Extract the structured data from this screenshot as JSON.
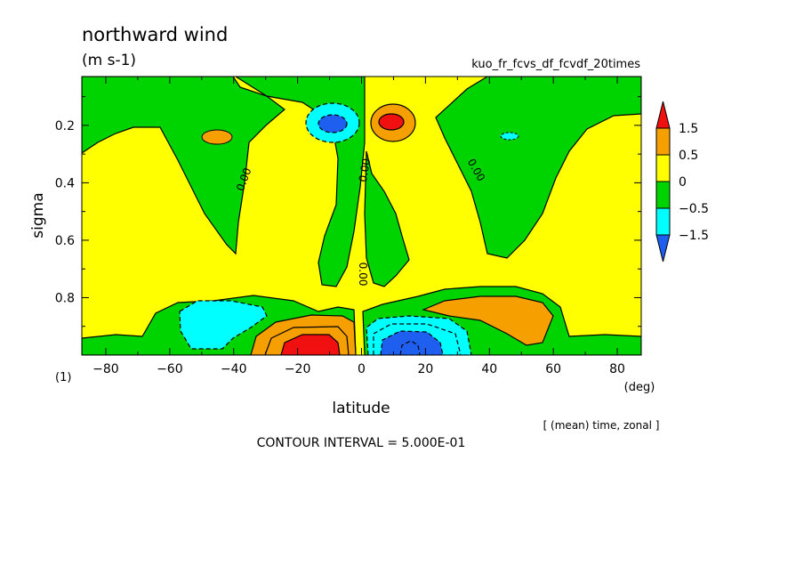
{
  "chart_data": {
    "type": "heatmap",
    "title": "northward wind",
    "units": "(m s-1)",
    "experiment": "kuo_fr_fcvs_df_fcvdf_20times",
    "xlabel": "latitude",
    "xunit": "(deg)",
    "ylabel": "sigma",
    "panel_number": "(1)",
    "averaging_note": "[ (mean) time, zonal ]",
    "contour_interval_text": "CONTOUR INTERVAL = 5.000E-01",
    "xlim": [
      -87.5,
      87.5
    ],
    "ylim": [
      1.0,
      0.03
    ],
    "x_ticks": [
      -80,
      -60,
      -40,
      -20,
      0,
      20,
      40,
      60,
      80
    ],
    "y_ticks": [
      0.2,
      0.4,
      0.6,
      0.8
    ],
    "contour_label": "0.00",
    "colorbar": {
      "boundaries": [
        -1.5,
        -0.5,
        0,
        0.5,
        1.5
      ],
      "tick_labels": [
        "1.5",
        "0.5",
        "0",
        "−0.5",
        "−1.5"
      ],
      "colors": [
        "#1f5ff0",
        "#00ffff",
        "#00d400",
        "#ffff00",
        "#f5a000",
        "#f01010"
      ]
    },
    "regions": [
      {
        "class": "<-1.5",
        "color": "#1f5ff0",
        "lat_range": [
          -13,
          -8
        ],
        "sigma_range": [
          0.16,
          0.2
        ],
        "note": "upper SH core"
      },
      {
        "class": "-1.5..-0.5",
        "color": "#00ffff",
        "lat_range": [
          -17,
          -4
        ],
        "sigma_range": [
          0.14,
          0.24
        ],
        "note": "upper tropospheric southerly"
      },
      {
        "class": ">1.5",
        "color": "#f01010",
        "lat_range": [
          6,
          12
        ],
        "sigma_range": [
          0.16,
          0.2
        ],
        "note": "upper NH core"
      },
      {
        "class": "0.5..1.5",
        "color": "#f5a000",
        "lat_range": [
          3,
          17
        ],
        "sigma_range": [
          0.13,
          0.25
        ],
        "note": "upper tropospheric northerly"
      },
      {
        "class": ">1.5",
        "color": "#f01010",
        "lat_range": [
          -22,
          -6
        ],
        "sigma_range": [
          0.93,
          1.0
        ],
        "note": "low-level SH core"
      },
      {
        "class": "0.5..1.5",
        "color": "#f5a000",
        "lat_range": [
          -33,
          -3
        ],
        "sigma_range": [
          0.87,
          1.0
        ],
        "note": "low-level SH northerly"
      },
      {
        "class": "<-1.5",
        "color": "#1f5ff0",
        "lat_range": [
          5,
          25
        ],
        "sigma_range": [
          0.9,
          1.0
        ],
        "note": "low-level NH core"
      },
      {
        "class": "-1.5..-0.5",
        "color": "#00ffff",
        "lat_range": [
          3,
          33
        ],
        "sigma_range": [
          0.86,
          1.0
        ],
        "note": "low-level NH southerly"
      },
      {
        "class": "-1.5..-0.5",
        "color": "#00ffff",
        "lat_range": [
          -58,
          -35
        ],
        "sigma_range": [
          0.8,
          0.97
        ],
        "note": "SH midlatitude"
      },
      {
        "class": "0.5..1.5",
        "color": "#f5a000",
        "lat_range": [
          21,
          58
        ],
        "sigma_range": [
          0.8,
          0.95
        ],
        "note": "NH midlatitude"
      },
      {
        "class": "0.5..1.5",
        "color": "#f5a000",
        "lat_range": [
          -51,
          -42
        ],
        "sigma_range": [
          0.19,
          0.26
        ],
        "note": "SH upper blob"
      },
      {
        "class": "-1.5..-0.5",
        "color": "#00ffff",
        "lat_range": [
          42,
          49
        ],
        "sigma_range": [
          0.21,
          0.24
        ],
        "note": "NH upper blob"
      }
    ]
  }
}
